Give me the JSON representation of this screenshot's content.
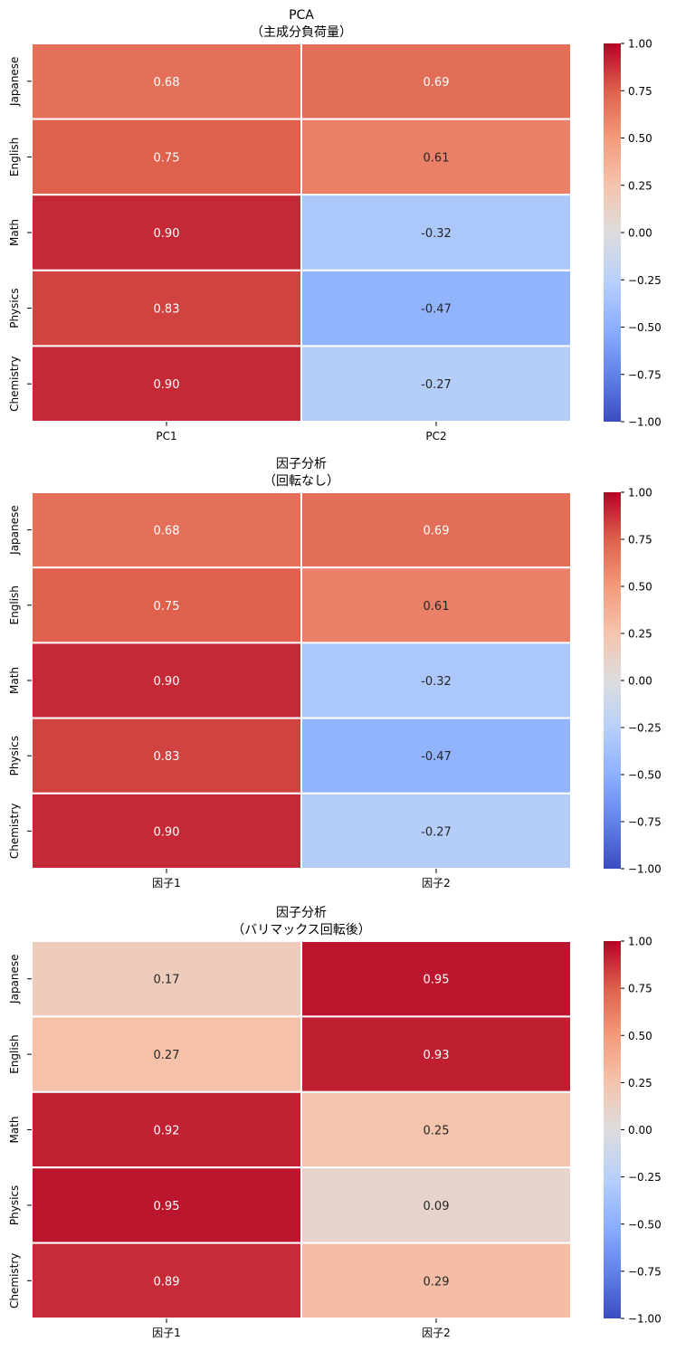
{
  "colorbar": {
    "min": -1.0,
    "max": 1.0,
    "ticks": [
      "1.00",
      "0.75",
      "0.50",
      "0.25",
      "0.00",
      "−0.25",
      "−0.50",
      "−0.75",
      "−1.00"
    ],
    "colormap": "coolwarm"
  },
  "chart_data": [
    {
      "type": "heatmap",
      "title_line1": "PCA",
      "title_line2": "（主成分負荷量）",
      "rows": [
        "Japanese",
        "English",
        "Math",
        "Physics",
        "Chemistry"
      ],
      "columns": [
        "PC1",
        "PC2"
      ],
      "values": [
        [
          0.68,
          0.69
        ],
        [
          0.75,
          0.61
        ],
        [
          0.9,
          -0.32
        ],
        [
          0.83,
          -0.47
        ],
        [
          0.9,
          -0.27
        ]
      ],
      "labels": [
        [
          "0.68",
          "0.69"
        ],
        [
          "0.75",
          "0.61"
        ],
        [
          "0.90",
          "-0.32"
        ],
        [
          "0.83",
          "-0.47"
        ],
        [
          "0.90",
          "-0.27"
        ]
      ],
      "vmin": -1.0,
      "vmax": 1.0
    },
    {
      "type": "heatmap",
      "title_line1": "因子分析",
      "title_line2": "（回転なし）",
      "rows": [
        "Japanese",
        "English",
        "Math",
        "Physics",
        "Chemistry"
      ],
      "columns": [
        "因子1",
        "因子2"
      ],
      "values": [
        [
          0.68,
          0.69
        ],
        [
          0.75,
          0.61
        ],
        [
          0.9,
          -0.32
        ],
        [
          0.83,
          -0.47
        ],
        [
          0.9,
          -0.27
        ]
      ],
      "labels": [
        [
          "0.68",
          "0.69"
        ],
        [
          "0.75",
          "0.61"
        ],
        [
          "0.90",
          "-0.32"
        ],
        [
          "0.83",
          "-0.47"
        ],
        [
          "0.90",
          "-0.27"
        ]
      ],
      "vmin": -1.0,
      "vmax": 1.0
    },
    {
      "type": "heatmap",
      "title_line1": "因子分析",
      "title_line2": "（バリマックス回転後）",
      "rows": [
        "Japanese",
        "English",
        "Math",
        "Physics",
        "Chemistry"
      ],
      "columns": [
        "因子1",
        "因子2"
      ],
      "values": [
        [
          0.17,
          0.95
        ],
        [
          0.27,
          0.93
        ],
        [
          0.92,
          0.25
        ],
        [
          0.95,
          0.09
        ],
        [
          0.89,
          0.29
        ]
      ],
      "labels": [
        [
          "0.17",
          "0.95"
        ],
        [
          "0.27",
          "0.93"
        ],
        [
          "0.92",
          "0.25"
        ],
        [
          "0.95",
          "0.09"
        ],
        [
          "0.89",
          "0.29"
        ]
      ],
      "vmin": -1.0,
      "vmax": 1.0
    }
  ]
}
